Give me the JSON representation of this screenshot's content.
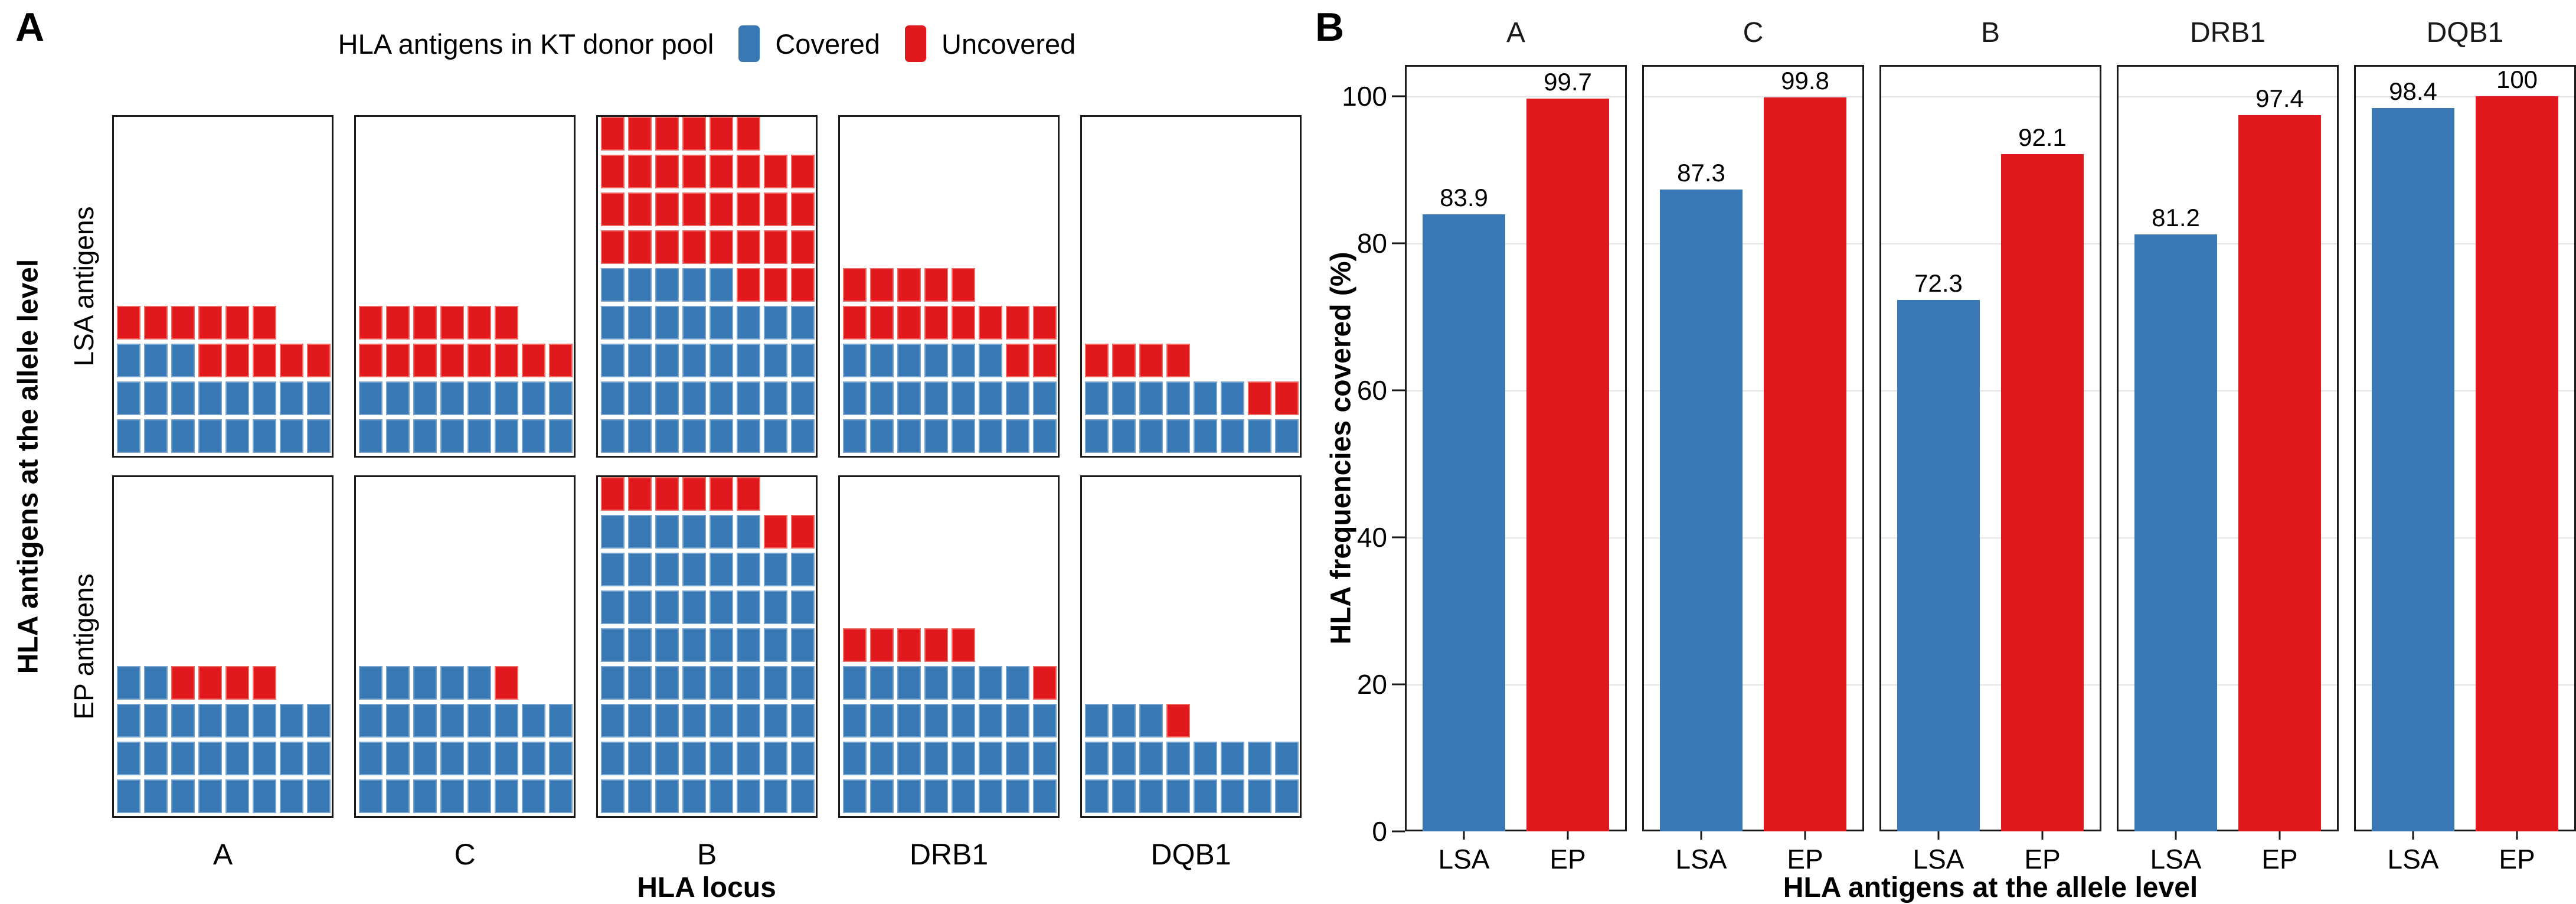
{
  "colors": {
    "covered_blue": "#3878b4",
    "covered_blue_edge": "#78a6cf",
    "uncovered_red": "#e2191c",
    "uncovered_red_edge": "#ee6a63",
    "frame": "#1a1a1a",
    "gridline": "#e4e4e4"
  },
  "panel_a": {
    "letter": "A",
    "legend": {
      "title": "HLA antigens in KT donor pool",
      "items": [
        {
          "label": "Covered",
          "color": "#3878b4"
        },
        {
          "label": "Uncovered",
          "color": "#e2191c"
        }
      ]
    },
    "y_axis_title": "HLA antigens at the allele level",
    "x_axis_title": "HLA locus",
    "row_facets": [
      "LSA antigens",
      "EP antigens"
    ],
    "loci": [
      "A",
      "C",
      "B",
      "DRB1",
      "DQB1"
    ],
    "waffle_columns": 8,
    "waffle": {
      "LSA": [
        {
          "locus": "A",
          "covered": 19,
          "uncovered": 11
        },
        {
          "locus": "C",
          "covered": 16,
          "uncovered": 14
        },
        {
          "locus": "B",
          "covered": 37,
          "uncovered": 33
        },
        {
          "locus": "DRB1",
          "covered": 22,
          "uncovered": 15
        },
        {
          "locus": "DQB1",
          "covered": 14,
          "uncovered": 6
        }
      ],
      "EP": [
        {
          "locus": "A",
          "covered": 26,
          "uncovered": 4
        },
        {
          "locus": "C",
          "covered": 29,
          "uncovered": 1
        },
        {
          "locus": "B",
          "covered": 62,
          "uncovered": 8
        },
        {
          "locus": "DRB1",
          "covered": 31,
          "uncovered": 6
        },
        {
          "locus": "DQB1",
          "covered": 19,
          "uncovered": 1
        }
      ]
    }
  },
  "panel_b": {
    "letter": "B",
    "y_axis_title": "HLA frequencies covered (%)",
    "x_axis_title": "HLA antigens at the allele level",
    "y_ticks": [
      0,
      20,
      40,
      60,
      80,
      100
    ],
    "facets": [
      "A",
      "C",
      "B",
      "DRB1",
      "DQB1"
    ],
    "bar_groups": [
      "LSA",
      "EP"
    ],
    "values": {
      "A": [
        83.9,
        99.7
      ],
      "C": [
        87.3,
        99.8
      ],
      "B": [
        72.3,
        92.1
      ],
      "DRB1": [
        81.2,
        97.4
      ],
      "DQB1": [
        98.4,
        100
      ]
    }
  },
  "chart_data": [
    {
      "type": "heatmap",
      "subtype": "waffle-grid",
      "title": "HLA antigens in KT donor pool",
      "legend_entries": [
        "Covered",
        "Uncovered"
      ],
      "legend_position": "top",
      "grid": false,
      "columns_per_waffle": 8,
      "row_facets": [
        "LSA antigens",
        "EP antigens"
      ],
      "column_facets": [
        "A",
        "C",
        "B",
        "DRB1",
        "DQB1"
      ],
      "xlabel": "HLA locus",
      "ylabel": "HLA antigens at the allele level",
      "series": [
        {
          "name": "LSA covered",
          "values": [
            19,
            16,
            37,
            22,
            14
          ]
        },
        {
          "name": "LSA uncovered",
          "values": [
            11,
            14,
            33,
            15,
            6
          ]
        },
        {
          "name": "EP covered",
          "values": [
            26,
            29,
            62,
            31,
            19
          ]
        },
        {
          "name": "EP uncovered",
          "values": [
            4,
            1,
            8,
            6,
            1
          ]
        }
      ]
    },
    {
      "type": "bar",
      "title": "",
      "facets": [
        "A",
        "C",
        "B",
        "DRB1",
        "DQB1"
      ],
      "categories": [
        "LSA",
        "EP"
      ],
      "series": [
        {
          "name": "LSA",
          "color": "#3878b4",
          "values": [
            83.9,
            87.3,
            72.3,
            81.2,
            98.4
          ]
        },
        {
          "name": "EP",
          "color": "#e2191c",
          "values": [
            99.7,
            99.8,
            92.1,
            97.4,
            100
          ]
        }
      ],
      "value_labels_shown": true,
      "xlabel": "HLA antigens at the allele level",
      "ylabel": "HLA frequencies covered (%)",
      "ylim": [
        0,
        100
      ],
      "y_ticks": [
        0,
        20,
        40,
        60,
        80,
        100
      ],
      "grid": true,
      "legend_position": "none"
    }
  ]
}
